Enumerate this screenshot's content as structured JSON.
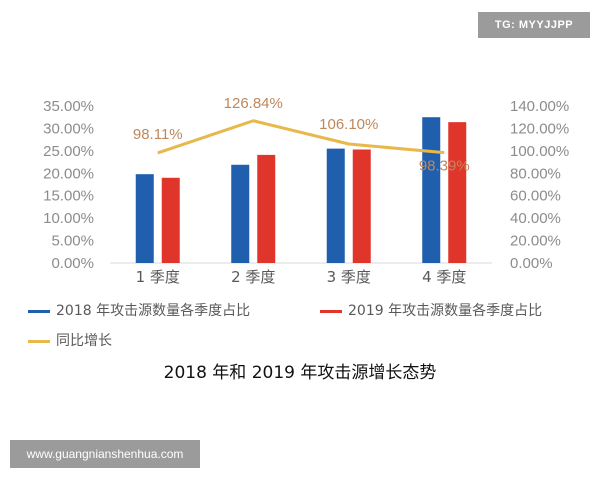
{
  "watermark": {
    "top_right": "TG: MYYJJPP",
    "bottom_left": "www.guangnianshenhua.com"
  },
  "chart_data": {
    "type": "bar",
    "title": "2018 年和 2019 年攻击源增长态势",
    "categories": [
      "1 季度",
      "2 季度",
      "3 季度",
      "4 季度"
    ],
    "series": [
      {
        "name": "2018 年攻击源数量各季度占比",
        "type": "bar",
        "axis": "left",
        "color": "#1f5fae",
        "values": [
          19.8,
          21.9,
          25.5,
          32.5
        ]
      },
      {
        "name": "2019 年攻击源数量各季度占比",
        "type": "bar",
        "axis": "left",
        "color": "#e0352b",
        "values": [
          19.0,
          24.1,
          25.3,
          31.4
        ]
      },
      {
        "name": "同比增长",
        "type": "line",
        "axis": "right",
        "color": "#e8b84a",
        "values": [
          98.11,
          126.84,
          106.1,
          98.39
        ],
        "labels": [
          "98.11%",
          "126.84%",
          "106.10%",
          "98.39%"
        ]
      }
    ],
    "y_left": {
      "ylim": [
        0,
        35
      ],
      "ticks": [
        "0.00%",
        "5.00%",
        "10.00%",
        "15.00%",
        "20.00%",
        "25.00%",
        "30.00%",
        "35.00%"
      ]
    },
    "y_right": {
      "ylim": [
        0,
        140
      ],
      "ticks": [
        "0.00%",
        "20.00%",
        "40.00%",
        "60.00%",
        "80.00%",
        "100.00%",
        "120.00%",
        "140.00%"
      ]
    },
    "grid": false,
    "legend_position": "bottom"
  }
}
